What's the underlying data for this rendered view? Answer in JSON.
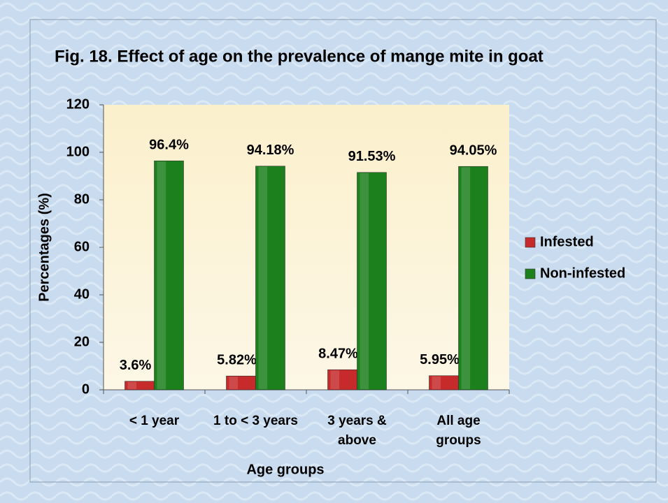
{
  "chart_data": {
    "type": "bar",
    "title": "Fig. 18. Effect of age on the prevalence of mange mite in goat",
    "x_label": "Age groups",
    "y_label": "Percentages (%)",
    "categories": [
      "< 1 year",
      "1 to < 3 years",
      "3 years &\nabove",
      "All age\ngroups"
    ],
    "series": [
      {
        "name": "Infested",
        "color": "#c62a2a",
        "values": [
          3.6,
          5.82,
          8.47,
          5.95
        ],
        "value_labels": [
          "3.6%",
          "5.82%",
          "8.47%",
          "5.95%"
        ]
      },
      {
        "name": "Non-infested",
        "color": "#1c801c",
        "values": [
          96.4,
          94.18,
          91.53,
          94.05
        ],
        "value_labels": [
          "96.4%",
          "94.18%",
          "91.53%",
          "94.05%"
        ]
      }
    ],
    "ylim": [
      0,
      120
    ],
    "yticks": [
      0,
      20,
      40,
      60,
      80,
      100,
      120
    ],
    "grid": false,
    "legend": "right"
  }
}
